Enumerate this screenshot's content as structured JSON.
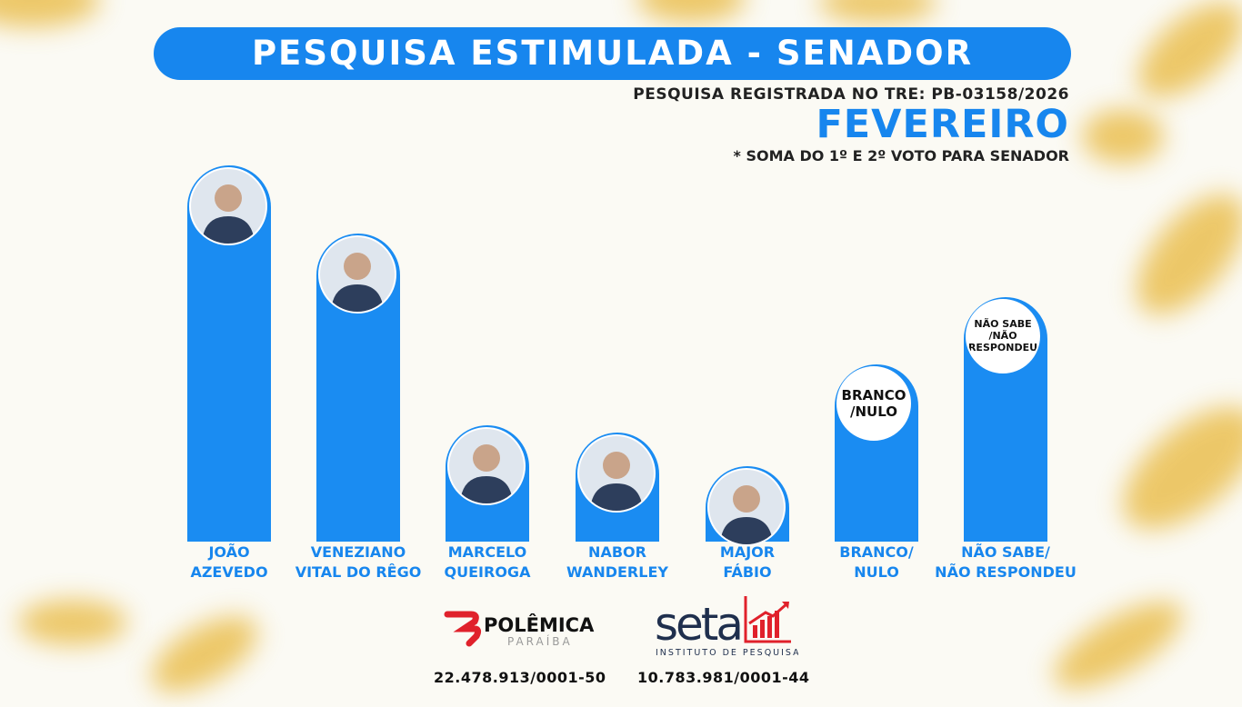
{
  "header": {
    "title": "PESQUISA ESTIMULADA - SENADOR",
    "registration": "PESQUISA REGISTRADA NO TRE: PB-03158/2026",
    "month": "FEVEREIRO",
    "note": "* SOMA DO 1º E 2º VOTO PARA SENADOR"
  },
  "colors": {
    "bar": "#1a8cf2",
    "title_bg": "#1786ee",
    "accent_text": "#1786ee",
    "logo_red": "#e0212b",
    "seta_navy": "#1f2f4d"
  },
  "chart_data": {
    "type": "bar",
    "title": "PESQUISA ESTIMULADA - SENADOR",
    "categories": [
      "JOÃO AZEVEDO",
      "VENEZIANO VITAL DO RÊGO",
      "MARCELO QUEIROGA",
      "NABOR WANDERLEY",
      "MAJOR FÁBIO",
      "BRANCO/ NULO",
      "NÃO SABE/ NÃO RESPONDEU"
    ],
    "label_lines": [
      [
        "JOÃO",
        "AZEVEDO"
      ],
      [
        "VENEZIANO",
        "VITAL DO RÊGO"
      ],
      [
        "MARCELO",
        "QUEIROGA"
      ],
      [
        "NABOR",
        "WANDERLEY"
      ],
      [
        "MAJOR",
        "FÁBIO"
      ],
      [
        "BRANCO/",
        "NULO"
      ],
      [
        "NÃO SABE/",
        "NÃO RESPONDEU"
      ]
    ],
    "values": [
      100,
      82,
      31,
      29,
      20,
      47,
      65
    ],
    "value_note": "relative bar heights (tallest = 100); values not printed",
    "circle_types": [
      "photo",
      "photo",
      "photo",
      "photo",
      "photo",
      "text",
      "text"
    ],
    "circle_texts": [
      "",
      "",
      "",
      "",
      "",
      "BRANCO /NULO",
      "NÃO SABE /NÃO RESPONDEU"
    ],
    "grid": false
  },
  "footer": {
    "logo1": "POLÊMICA",
    "logo1_sub": "PARAÍBA",
    "logo2": "seta",
    "logo2_sub": "INSTITUTO DE PESQUISA",
    "cnpj1": "22.478.913/0001-50",
    "cnpj2": "10.783.981/0001-44"
  }
}
